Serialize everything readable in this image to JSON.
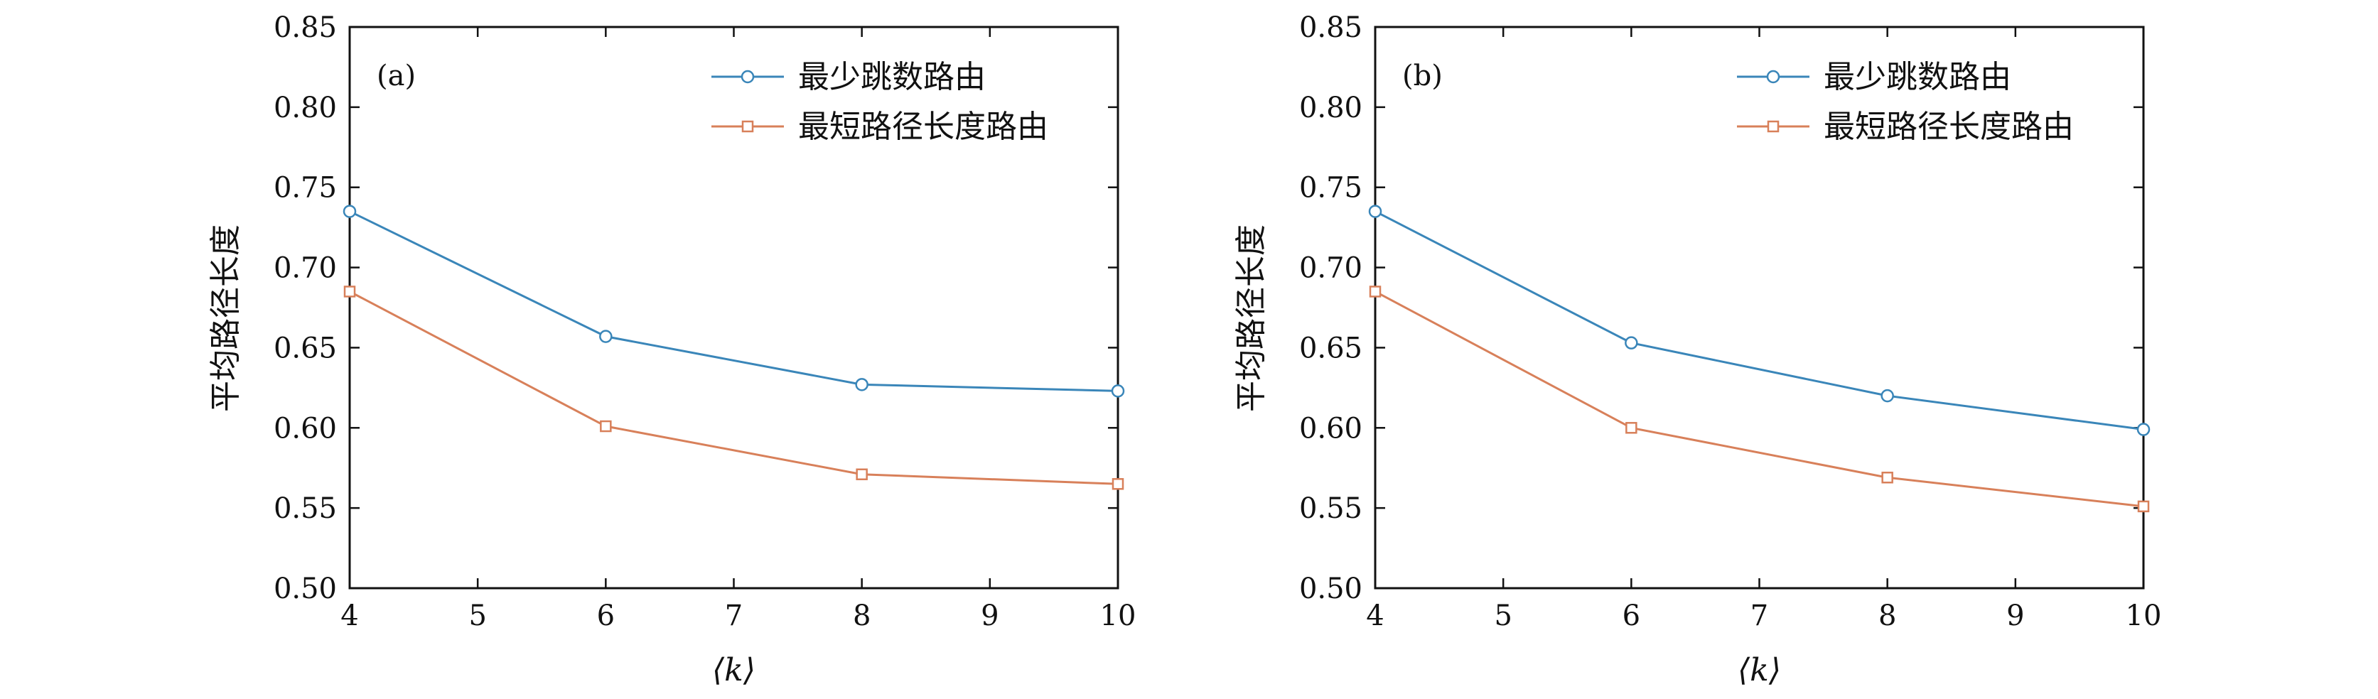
{
  "figure": {
    "colors": {
      "series1": "#3a86b9",
      "series2": "#d8805a",
      "axis": "#111111"
    }
  },
  "chart_data": [
    {
      "type": "line",
      "panel_label": "(a)",
      "xlabel": "⟨k⟩",
      "ylabel": "平均路径长度",
      "xlim": [
        4,
        10
      ],
      "ylim": [
        0.5,
        0.85
      ],
      "xticks": [
        "4",
        "5",
        "6",
        "7",
        "8",
        "9",
        "10"
      ],
      "yticks": [
        "0.50",
        "0.55",
        "0.60",
        "0.65",
        "0.70",
        "0.75",
        "0.80",
        "0.85"
      ],
      "legend_position": "top-right",
      "grid": false,
      "x": [
        4,
        6,
        8,
        10
      ],
      "series": [
        {
          "name": "最少跳数路由",
          "marker": "circle",
          "color": "#3a86b9",
          "values": [
            0.735,
            0.657,
            0.627,
            0.623
          ]
        },
        {
          "name": "最短路径长度路由",
          "marker": "square",
          "color": "#d8805a",
          "values": [
            0.685,
            0.601,
            0.571,
            0.565
          ]
        }
      ]
    },
    {
      "type": "line",
      "panel_label": "(b)",
      "xlabel": "⟨k⟩",
      "ylabel": "平均路径长度",
      "xlim": [
        4,
        10
      ],
      "ylim": [
        0.5,
        0.85
      ],
      "xticks": [
        "4",
        "5",
        "6",
        "7",
        "8",
        "9",
        "10"
      ],
      "yticks": [
        "0.50",
        "0.55",
        "0.60",
        "0.65",
        "0.70",
        "0.75",
        "0.80",
        "0.85"
      ],
      "legend_position": "top-right",
      "grid": false,
      "x": [
        4,
        6,
        8,
        10
      ],
      "series": [
        {
          "name": "最少跳数路由",
          "marker": "circle",
          "color": "#3a86b9",
          "values": [
            0.735,
            0.653,
            0.62,
            0.599
          ]
        },
        {
          "name": "最短路径长度路由",
          "marker": "square",
          "color": "#d8805a",
          "values": [
            0.685,
            0.6,
            0.569,
            0.551
          ]
        }
      ]
    }
  ]
}
